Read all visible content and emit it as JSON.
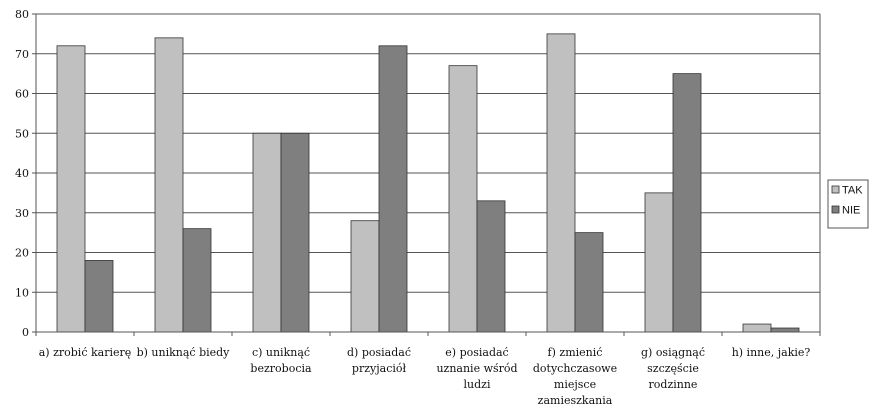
{
  "chart_data": {
    "type": "bar",
    "categories": [
      [
        "a) zrobić karierę"
      ],
      [
        "b) uniknąć biedy"
      ],
      [
        "c) uniknąć",
        "bezrobocia"
      ],
      [
        "d) posiadać",
        "przyjaciół"
      ],
      [
        "e) posiadać",
        "uznanie wśród",
        "ludzi"
      ],
      [
        "f) zmienić",
        "dotychczasowe",
        "miejsce",
        "zamieszkania"
      ],
      [
        "g) osiągnąć",
        "szczęście",
        "rodzinne"
      ],
      [
        "h) inne, jakie?"
      ]
    ],
    "series": [
      {
        "name": "TAK",
        "color": "#c0c0c0",
        "values": [
          72,
          74,
          50,
          28,
          67,
          75,
          35,
          2
        ]
      },
      {
        "name": "NIE",
        "color": "#7f7f7f",
        "values": [
          18,
          26,
          50,
          72,
          33,
          25,
          65,
          1
        ]
      }
    ],
    "ylim": [
      0,
      80
    ],
    "yticks": [
      0,
      10,
      20,
      30,
      40,
      50,
      60,
      70,
      80
    ],
    "grid": true,
    "legend": "right"
  }
}
